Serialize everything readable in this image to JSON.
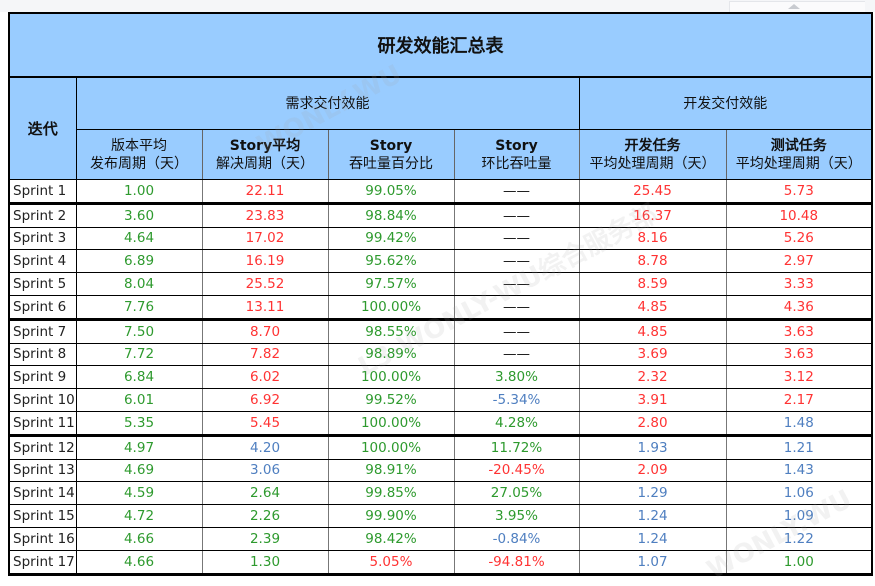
{
  "title": "研发效能汇总表",
  "headers": {
    "iteration": "迭代",
    "group_demand": "需求交付效能",
    "group_dev": "开发交付效能",
    "columns": [
      {
        "line1": "版本平均",
        "line2": "发布周期（天）"
      },
      {
        "line1": "Story平均",
        "line2": "解决周期（天）"
      },
      {
        "line1": "Story",
        "line2": "吞吐量百分比"
      },
      {
        "line1": "Story",
        "line2": "环比吞吐量"
      },
      {
        "line1": "开发任务",
        "line2": "平均处理周期（天）"
      },
      {
        "line1": "测试任务",
        "line2": "平均处理周期（天）"
      }
    ]
  },
  "colors": {
    "header_bg": "#99ccff",
    "good": "#2e9a2e",
    "bad": "#ff3333",
    "neutral": "#4f7fc0"
  },
  "rows": [
    {
      "name": "Sprint 1",
      "cells": [
        [
          "1.00",
          "green"
        ],
        [
          "22.11",
          "red"
        ],
        [
          "99.05%",
          "green"
        ],
        [
          "——",
          "dash"
        ],
        [
          "25.45",
          "red"
        ],
        [
          "5.73",
          "red"
        ]
      ]
    },
    {
      "name": "Sprint 2",
      "cells": [
        [
          "3.60",
          "green"
        ],
        [
          "23.83",
          "red"
        ],
        [
          "98.84%",
          "green"
        ],
        [
          "——",
          "dash"
        ],
        [
          "16.37",
          "red"
        ],
        [
          "10.48",
          "red"
        ]
      ]
    },
    {
      "name": "Sprint 3",
      "cells": [
        [
          "4.64",
          "green"
        ],
        [
          "17.02",
          "red"
        ],
        [
          "99.42%",
          "green"
        ],
        [
          "——",
          "dash"
        ],
        [
          "8.16",
          "red"
        ],
        [
          "5.26",
          "red"
        ]
      ]
    },
    {
      "name": "Sprint 4",
      "cells": [
        [
          "6.89",
          "green"
        ],
        [
          "16.19",
          "red"
        ],
        [
          "95.62%",
          "green"
        ],
        [
          "——",
          "dash"
        ],
        [
          "8.78",
          "red"
        ],
        [
          "2.97",
          "red"
        ]
      ]
    },
    {
      "name": "Sprint 5",
      "cells": [
        [
          "8.04",
          "green"
        ],
        [
          "25.52",
          "red"
        ],
        [
          "97.57%",
          "green"
        ],
        [
          "——",
          "dash"
        ],
        [
          "8.59",
          "red"
        ],
        [
          "3.33",
          "red"
        ]
      ]
    },
    {
      "name": "Sprint 6",
      "cells": [
        [
          "7.76",
          "green"
        ],
        [
          "13.11",
          "red"
        ],
        [
          "100.00%",
          "green"
        ],
        [
          "——",
          "dash"
        ],
        [
          "4.85",
          "red"
        ],
        [
          "4.36",
          "red"
        ]
      ]
    },
    {
      "name": "Sprint 7",
      "cells": [
        [
          "7.50",
          "green"
        ],
        [
          "8.70",
          "red"
        ],
        [
          "98.55%",
          "green"
        ],
        [
          "——",
          "dash"
        ],
        [
          "4.85",
          "red"
        ],
        [
          "3.63",
          "red"
        ]
      ]
    },
    {
      "name": "Sprint 8",
      "cells": [
        [
          "7.72",
          "green"
        ],
        [
          "7.82",
          "red"
        ],
        [
          "98.89%",
          "green"
        ],
        [
          "——",
          "dash"
        ],
        [
          "3.69",
          "red"
        ],
        [
          "3.63",
          "red"
        ]
      ]
    },
    {
      "name": "Sprint 9",
      "cells": [
        [
          "6.84",
          "green"
        ],
        [
          "6.02",
          "red"
        ],
        [
          "100.00%",
          "green"
        ],
        [
          "3.80%",
          "green"
        ],
        [
          "2.32",
          "red"
        ],
        [
          "3.12",
          "red"
        ]
      ]
    },
    {
      "name": "Sprint 10",
      "cells": [
        [
          "6.01",
          "green"
        ],
        [
          "6.92",
          "red"
        ],
        [
          "99.52%",
          "green"
        ],
        [
          "-5.34%",
          "blue"
        ],
        [
          "3.91",
          "red"
        ],
        [
          "2.17",
          "red"
        ]
      ]
    },
    {
      "name": "Sprint 11",
      "cells": [
        [
          "5.35",
          "green"
        ],
        [
          "5.45",
          "red"
        ],
        [
          "100.00%",
          "green"
        ],
        [
          "4.28%",
          "green"
        ],
        [
          "2.80",
          "red"
        ],
        [
          "1.48",
          "blue"
        ]
      ]
    },
    {
      "name": "Sprint 12",
      "cells": [
        [
          "4.97",
          "green"
        ],
        [
          "4.20",
          "blue"
        ],
        [
          "100.00%",
          "green"
        ],
        [
          "11.72%",
          "green"
        ],
        [
          "1.93",
          "blue"
        ],
        [
          "1.21",
          "blue"
        ]
      ]
    },
    {
      "name": "Sprint 13",
      "cells": [
        [
          "4.69",
          "green"
        ],
        [
          "3.06",
          "blue"
        ],
        [
          "98.91%",
          "green"
        ],
        [
          "-20.45%",
          "red"
        ],
        [
          "2.09",
          "red"
        ],
        [
          "1.43",
          "blue"
        ]
      ]
    },
    {
      "name": "Sprint 14",
      "cells": [
        [
          "4.59",
          "green"
        ],
        [
          "2.64",
          "green"
        ],
        [
          "99.85%",
          "green"
        ],
        [
          "27.05%",
          "green"
        ],
        [
          "1.29",
          "blue"
        ],
        [
          "1.06",
          "blue"
        ]
      ]
    },
    {
      "name": "Sprint 15",
      "cells": [
        [
          "4.72",
          "green"
        ],
        [
          "2.26",
          "green"
        ],
        [
          "99.90%",
          "green"
        ],
        [
          "3.95%",
          "green"
        ],
        [
          "1.24",
          "blue"
        ],
        [
          "1.09",
          "blue"
        ]
      ]
    },
    {
      "name": "Sprint 16",
      "cells": [
        [
          "4.66",
          "green"
        ],
        [
          "2.39",
          "green"
        ],
        [
          "98.42%",
          "green"
        ],
        [
          "-0.84%",
          "blue"
        ],
        [
          "1.24",
          "blue"
        ],
        [
          "1.22",
          "blue"
        ]
      ]
    },
    {
      "name": "Sprint 17",
      "cells": [
        [
          "4.66",
          "green"
        ],
        [
          "1.30",
          "green"
        ],
        [
          "5.05%",
          "red"
        ],
        [
          "-94.81%",
          "red"
        ],
        [
          "1.07",
          "blue"
        ],
        [
          "1.00",
          "green"
        ]
      ]
    }
  ],
  "thick_after_rows": [
    0,
    5,
    10
  ],
  "watermarks": [
    "WONLY.WU",
    "L3-WONLY-WU综合服务部",
    "WONLY.WU"
  ]
}
